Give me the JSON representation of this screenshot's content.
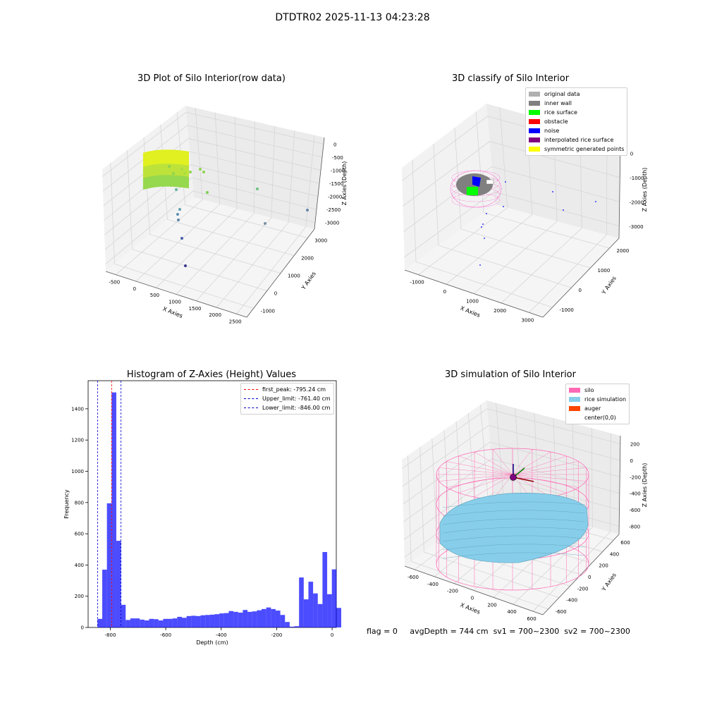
{
  "suptitle": "DTDTR02 2025-11-13 04:23:28",
  "status": {
    "flag": "flag = 0",
    "avg_depth": "avgDepth = 744 cm",
    "sv1": "sv1 = 700~2300",
    "sv2": "sv2 = 700~2300"
  },
  "plot1": {
    "title": "3D Plot of Silo Interior(row data)",
    "xlabel": "X Axies",
    "ylabel": "Y Axies",
    "zlabel": "Z Axies (Depth)",
    "xticks": [
      "-500",
      "0",
      "500",
      "1000",
      "1500",
      "2000",
      "2500"
    ],
    "yticks": [
      "-1000",
      "0",
      "1000",
      "2000",
      "3000"
    ],
    "zticks": [
      "0",
      "-500",
      "-1000",
      "-1500",
      "-2000",
      "-2500",
      "-3000"
    ]
  },
  "plot2": {
    "title": "3D classify of Silo Interior",
    "xlabel": "X Axies",
    "ylabel": "Y Axies",
    "zlabel": "Z Axies (Depth)",
    "xticks": [
      "-1000",
      "0",
      "1000",
      "2000",
      "3000"
    ],
    "yticks": [
      "-1000",
      "0",
      "1000",
      "2000"
    ],
    "zticks": [
      "0",
      "-1000",
      "-2000",
      "-3000"
    ],
    "legend": [
      {
        "label": "original data",
        "color": "#b0b0b0"
      },
      {
        "label": "inner wall",
        "color": "#808080"
      },
      {
        "label": "rice surface",
        "color": "#00ff00"
      },
      {
        "label": "obstacle",
        "color": "#ff0000"
      },
      {
        "label": "noise",
        "color": "#0000ff"
      },
      {
        "label": "interpolated rice surface",
        "color": "#800080"
      },
      {
        "label": "symmetric generated points",
        "color": "#ffff00"
      }
    ]
  },
  "plot4": {
    "title": "3D simulation of Silo Interior",
    "xlabel": "X Axies",
    "ylabel": "Y Axies",
    "zlabel": "Z Axies (Depth)",
    "xticks": [
      "-600",
      "-400",
      "-200",
      "0",
      "200",
      "400",
      "600"
    ],
    "yticks": [
      "-600",
      "-400",
      "-200",
      "0",
      "200",
      "400",
      "600"
    ],
    "zticks": [
      "200",
      "0",
      "-200",
      "-400",
      "-600",
      "-800"
    ],
    "legend": [
      {
        "label": "silo",
        "color": "#ff69b4"
      },
      {
        "label": "rice simulation",
        "color": "#87ceeb"
      },
      {
        "label": "auger",
        "color": "#ff4500"
      },
      {
        "label": "center(0,0)",
        "color": ""
      }
    ]
  },
  "chart_data": [
    {
      "type": "bar",
      "title": "Histogram of Z-Axies (Height) Values",
      "xlabel": "Depth (cm)",
      "ylabel": "Frequency",
      "bar_color": "#0000ff",
      "xlim": [
        -880,
        15
      ],
      "ylim": [
        0,
        1580
      ],
      "xticks": [
        -800,
        -600,
        -400,
        -200,
        0
      ],
      "yticks": [
        0,
        200,
        400,
        600,
        800,
        1000,
        1200,
        1400
      ],
      "bin_start": -846,
      "bin_width": 16.9,
      "values": [
        55,
        370,
        795,
        1505,
        555,
        145,
        48,
        58,
        58,
        50,
        45,
        55,
        53,
        45,
        55,
        55,
        58,
        68,
        62,
        73,
        75,
        73,
        78,
        80,
        82,
        85,
        90,
        92,
        105,
        100,
        95,
        112,
        100,
        103,
        110,
        118,
        128,
        118,
        108,
        80,
        35,
        5,
        8,
        320,
        180,
        293,
        218,
        150,
        483,
        213,
        372,
        125
      ],
      "vlines": [
        {
          "name": "first_peak: -795.24 cm",
          "x": -795.24,
          "color": "#ff0000"
        },
        {
          "name": "Upper_limit: -761.40 cm",
          "x": -761.4,
          "color": "#0000cd"
        },
        {
          "name": "Lower_limit: -846.00 cm",
          "x": -846.0,
          "color": "#0000cd"
        }
      ]
    }
  ]
}
